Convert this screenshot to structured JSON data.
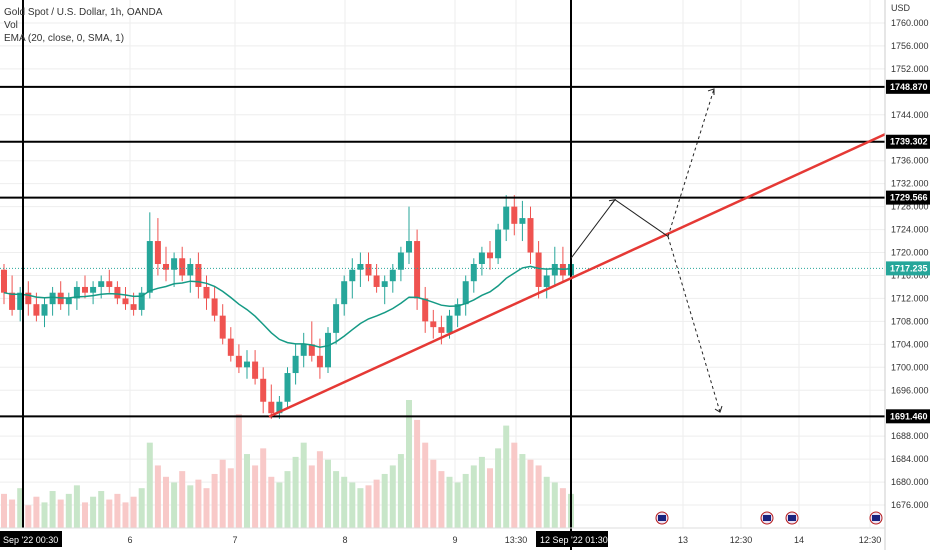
{
  "legend": {
    "title": "Gold Spot / U.S. Dollar, 1h, OANDA",
    "vol": "Vol",
    "ema": "EMA (20, close, 0, SMA, 1)"
  },
  "currency": "USD",
  "colors": {
    "up": "#26a69a",
    "down": "#ef5350",
    "up_vol": "#c8e6c9",
    "down_vol": "#f8c9c8",
    "ema": "#159a85",
    "trendline": "#e53935",
    "black": "#000000",
    "grid": "#eeeeee",
    "current_price_line": "#26a69a"
  },
  "chart_data": {
    "type": "candlestick",
    "title": "Gold Spot / U.S. Dollar, 1h, OANDA",
    "y_axis": {
      "unit": "USD",
      "range": [
        1672,
        1764
      ],
      "ticks": [
        1676,
        1680,
        1684,
        1688,
        1696,
        1700,
        1704,
        1708,
        1712,
        1716,
        1720,
        1724,
        1728,
        1732,
        1736,
        1744,
        1752,
        1756,
        1760
      ]
    },
    "x_axis": {
      "ticks": [
        "6",
        "7",
        "8",
        "9",
        "13:30",
        "13",
        "12:30",
        "14",
        "12:30"
      ],
      "crosshair_labels": [
        "Sep '22   00:30",
        "12 Sep '22   01:30"
      ]
    },
    "horizontal_levels": [
      {
        "label": "1748.870",
        "value": 1748.87
      },
      {
        "label": "1739.302",
        "value": 1739.302
      },
      {
        "label": "1729.566",
        "value": 1729.566
      },
      {
        "label": "1691.460",
        "value": 1691.46
      }
    ],
    "current_price": {
      "label": "1717.235",
      "value": 1717.235
    },
    "series": [
      {
        "name": "Gold Spot / U.S. Dollar",
        "candles": [
          [
            1717,
            1718,
            1711,
            1713
          ],
          [
            1713,
            1716,
            1709,
            1710
          ],
          [
            1710,
            1714,
            1708,
            1713
          ],
          [
            1713,
            1715,
            1709,
            1711
          ],
          [
            1711,
            1713,
            1708,
            1709
          ],
          [
            1709,
            1712,
            1707,
            1711
          ],
          [
            1711,
            1714,
            1709,
            1713
          ],
          [
            1713,
            1715,
            1710,
            1711
          ],
          [
            1711,
            1713,
            1709,
            1712
          ],
          [
            1712,
            1715,
            1710,
            1714
          ],
          [
            1714,
            1716,
            1712,
            1713
          ],
          [
            1713,
            1715,
            1711,
            1714
          ],
          [
            1714,
            1716,
            1712,
            1715
          ],
          [
            1715,
            1717,
            1713,
            1714
          ],
          [
            1714,
            1715,
            1711,
            1712
          ],
          [
            1712,
            1714,
            1710,
            1711
          ],
          [
            1711,
            1713,
            1709,
            1710
          ],
          [
            1710,
            1714,
            1709,
            1713
          ],
          [
            1713,
            1727,
            1712,
            1722
          ],
          [
            1722,
            1726,
            1716,
            1718
          ],
          [
            1718,
            1721,
            1715,
            1717
          ],
          [
            1717,
            1720,
            1714,
            1719
          ],
          [
            1719,
            1721,
            1715,
            1716
          ],
          [
            1716,
            1719,
            1713,
            1718
          ],
          [
            1718,
            1720,
            1712,
            1714
          ],
          [
            1714,
            1716,
            1710,
            1712
          ],
          [
            1712,
            1714,
            1708,
            1709
          ],
          [
            1709,
            1711,
            1704,
            1705
          ],
          [
            1705,
            1707,
            1701,
            1702
          ],
          [
            1702,
            1704,
            1699,
            1700
          ],
          [
            1700,
            1703,
            1698,
            1701
          ],
          [
            1701,
            1703,
            1697,
            1698
          ],
          [
            1698,
            1700,
            1692,
            1694
          ],
          [
            1694,
            1697,
            1691,
            1692
          ],
          [
            1692,
            1695,
            1691,
            1694
          ],
          [
            1694,
            1700,
            1693,
            1699
          ],
          [
            1699,
            1704,
            1697,
            1702
          ],
          [
            1702,
            1706,
            1700,
            1704
          ],
          [
            1704,
            1708,
            1701,
            1702
          ],
          [
            1702,
            1705,
            1698,
            1700
          ],
          [
            1700,
            1707,
            1699,
            1706
          ],
          [
            1706,
            1712,
            1704,
            1711
          ],
          [
            1711,
            1716,
            1709,
            1715
          ],
          [
            1715,
            1719,
            1712,
            1717
          ],
          [
            1717,
            1720,
            1714,
            1718
          ],
          [
            1718,
            1720,
            1715,
            1716
          ],
          [
            1716,
            1718,
            1713,
            1714
          ],
          [
            1714,
            1716,
            1711,
            1715
          ],
          [
            1715,
            1718,
            1713,
            1717
          ],
          [
            1717,
            1721,
            1715,
            1720
          ],
          [
            1720,
            1728,
            1718,
            1722
          ],
          [
            1722,
            1724,
            1710,
            1712
          ],
          [
            1712,
            1714,
            1706,
            1708
          ],
          [
            1708,
            1710,
            1705,
            1707
          ],
          [
            1707,
            1709,
            1704,
            1706
          ],
          [
            1706,
            1710,
            1705,
            1709
          ],
          [
            1709,
            1712,
            1707,
            1711
          ],
          [
            1711,
            1716,
            1709,
            1715
          ],
          [
            1715,
            1719,
            1713,
            1718
          ],
          [
            1718,
            1721,
            1716,
            1720
          ],
          [
            1720,
            1722,
            1717,
            1719
          ],
          [
            1719,
            1725,
            1718,
            1724
          ],
          [
            1724,
            1730,
            1722,
            1728
          ],
          [
            1728,
            1730,
            1723,
            1725
          ],
          [
            1725,
            1729,
            1722,
            1726
          ],
          [
            1726,
            1728,
            1718,
            1720
          ],
          [
            1720,
            1722,
            1712,
            1714
          ],
          [
            1714,
            1717,
            1712,
            1716
          ],
          [
            1716,
            1721,
            1714,
            1718
          ],
          [
            1718,
            1721,
            1715,
            1716
          ],
          [
            1716,
            1719,
            1715,
            1718
          ]
        ]
      },
      {
        "name": "EMA (20, close, 0, SMA, 1)",
        "type": "line"
      },
      {
        "name": "Vol",
        "type": "bar"
      }
    ],
    "volume": [
      12,
      10,
      14,
      8,
      11,
      9,
      13,
      10,
      12,
      15,
      9,
      11,
      13,
      10,
      12,
      9,
      11,
      14,
      30,
      22,
      18,
      16,
      20,
      15,
      17,
      14,
      19,
      24,
      21,
      40,
      26,
      22,
      28,
      18,
      16,
      20,
      25,
      30,
      22,
      27,
      24,
      20,
      18,
      16,
      14,
      15,
      17,
      19,
      22,
      26,
      45,
      38,
      30,
      24,
      20,
      18,
      16,
      19,
      22,
      25,
      21,
      28,
      36,
      30,
      26,
      24,
      22,
      18,
      16,
      14,
      12
    ]
  }
}
